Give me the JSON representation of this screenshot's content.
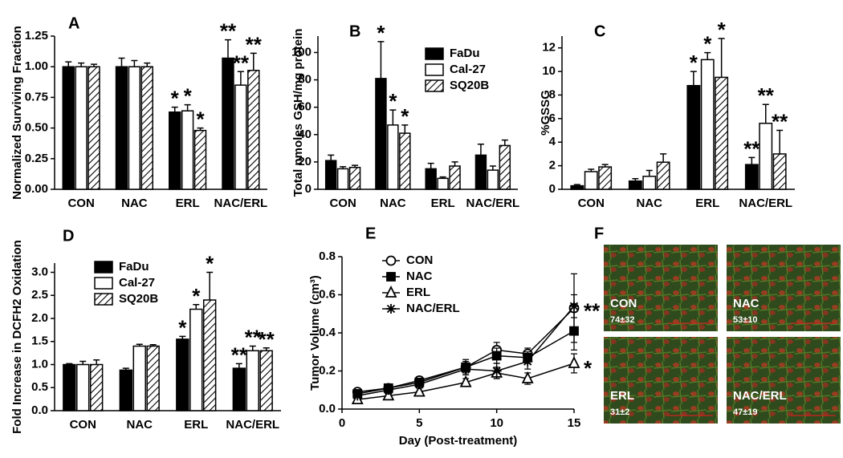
{
  "chart_data": [
    {
      "type": "bar",
      "panel": "A",
      "y_label": "Normalized Surviving Fraction",
      "legend": false,
      "categories": [
        "CON",
        "NAC",
        "ERL",
        "NAC/ERL"
      ],
      "ylim": [
        0,
        1.25
      ],
      "yticks": [
        {
          "value": 0,
          "label": "0.00"
        },
        0.25,
        {
          "value": 0.5,
          "label": "0.50"
        },
        0.75,
        {
          "value": 1,
          "label": "1.00"
        },
        1.25
      ],
      "series": [
        {
          "name": "FaDu",
          "color": "#000000",
          "values": [
            1.0,
            1.0,
            0.63,
            1.07
          ],
          "errors": [
            0.04,
            0.07,
            0.04,
            0.15
          ],
          "significance": [
            null,
            null,
            "*",
            "**"
          ]
        },
        {
          "name": "Cal-27",
          "color": "#ffffff",
          "values": [
            1.0,
            1.0,
            0.64,
            0.85
          ],
          "errors": [
            0.03,
            0.05,
            0.05,
            0.11
          ],
          "significance": [
            null,
            null,
            "*",
            "**"
          ]
        },
        {
          "name": "SQ20B",
          "color": "#000000",
          "hatch": true,
          "values": [
            1.0,
            1.0,
            0.48,
            0.97
          ],
          "errors": [
            0.02,
            0.03,
            0.02,
            0.14
          ],
          "significance": [
            null,
            null,
            "*",
            "**"
          ]
        }
      ]
    },
    {
      "type": "bar",
      "panel": "B",
      "y_label": "Total nmoles GSH/mg protein",
      "legend": "top-right",
      "categories": [
        "CON",
        "NAC",
        "ERL",
        "NAC/ERL"
      ],
      "ylim": [
        0,
        112
      ],
      "yticks": [
        0,
        20,
        40,
        60,
        80,
        100
      ],
      "series": [
        {
          "name": "FaDu",
          "color": "#000000",
          "values": [
            21,
            81,
            15,
            25
          ],
          "errors": [
            4,
            27,
            4,
            8
          ],
          "significance": [
            null,
            "*",
            null,
            null
          ]
        },
        {
          "name": "Cal-27",
          "color": "#ffffff",
          "values": [
            15,
            47,
            8,
            14
          ],
          "errors": [
            1.5,
            11,
            1,
            3
          ],
          "significance": [
            null,
            "*",
            null,
            null
          ]
        },
        {
          "name": "SQ20B",
          "color": "#000000",
          "hatch": true,
          "values": [
            16,
            41,
            17,
            32
          ],
          "errors": [
            1.5,
            6,
            3,
            4
          ],
          "significance": [
            null,
            "*",
            null,
            null
          ]
        }
      ]
    },
    {
      "type": "bar",
      "panel": "C",
      "y_label": "%GSSG",
      "legend": false,
      "categories": [
        "CON",
        "NAC",
        "ERL",
        "NAC/ERL"
      ],
      "ylim": [
        0,
        13
      ],
      "yticks": [
        0,
        2,
        4,
        6,
        8,
        10,
        12
      ],
      "series": [
        {
          "name": "FaDu",
          "color": "#000000",
          "values": [
            0.3,
            0.7,
            8.8,
            2.1
          ],
          "errors": [
            0.1,
            0.2,
            1.2,
            0.6
          ],
          "significance": [
            null,
            null,
            "*",
            "**"
          ]
        },
        {
          "name": "Cal-27",
          "color": "#ffffff",
          "values": [
            1.5,
            1.1,
            11,
            5.6
          ],
          "errors": [
            0.2,
            0.5,
            0.6,
            1.6
          ],
          "significance": [
            null,
            null,
            "*",
            "**"
          ]
        },
        {
          "name": "SQ20B",
          "color": "#000000",
          "hatch": true,
          "values": [
            1.9,
            2.3,
            9.5,
            3.0
          ],
          "errors": [
            0.2,
            0.7,
            3.3,
            2.0
          ],
          "significance": [
            null,
            null,
            "*",
            "**"
          ]
        }
      ]
    },
    {
      "type": "bar",
      "panel": "D",
      "y_label": "Fold Increase in DCFH2 Oxidation",
      "legend": "top-left",
      "categories": [
        "CON",
        "NAC",
        "ERL",
        "NAC/ERL"
      ],
      "ylim": [
        0,
        3.2
      ],
      "yticks": [
        {
          "value": 0,
          "label": "0.0"
        },
        0.5,
        {
          "value": 1,
          "label": "1.0"
        },
        1.5,
        {
          "value": 2,
          "label": "2.0"
        },
        2.5,
        {
          "value": 3,
          "label": "3.0"
        }
      ],
      "series": [
        {
          "name": "FaDu",
          "color": "#000000",
          "values": [
            1.0,
            0.88,
            1.55,
            0.92
          ],
          "errors": [
            0.02,
            0.04,
            0.06,
            0.1
          ],
          "significance": [
            null,
            null,
            "*",
            "**"
          ]
        },
        {
          "name": "Cal-27",
          "color": "#ffffff",
          "values": [
            1.0,
            1.4,
            2.2,
            1.3
          ],
          "errors": [
            0.07,
            0.04,
            0.1,
            0.1
          ],
          "significance": [
            null,
            null,
            "*",
            "**"
          ]
        },
        {
          "name": "SQ20B",
          "color": "#000000",
          "hatch": true,
          "values": [
            1.0,
            1.4,
            2.4,
            1.3
          ],
          "errors": [
            0.1,
            0.03,
            0.6,
            0.06
          ],
          "significance": [
            null,
            null,
            "*",
            "**"
          ]
        }
      ]
    },
    {
      "type": "line",
      "panel": "E",
      "y_label": "Tumor Volume (cm³)",
      "x_label": "Day (Post-treatment)",
      "legend": "top-left",
      "x": [
        1,
        3,
        5,
        8,
        10,
        12,
        15
      ],
      "xlim": [
        0,
        15
      ],
      "xticks": [
        0,
        5,
        10,
        15
      ],
      "ylim": [
        0,
        0.8
      ],
      "yticks": [
        {
          "value": 0,
          "label": "0.0"
        },
        0.2,
        0.4,
        0.6,
        0.8
      ],
      "series": [
        {
          "name": "CON",
          "color": "#000000",
          "marker": "circle-open",
          "values": [
            0.09,
            0.11,
            0.15,
            0.22,
            0.31,
            0.29,
            0.53
          ],
          "errors": [
            0.01,
            0.02,
            0.02,
            0.03,
            0.04,
            0.03,
            0.18
          ],
          "significance": null
        },
        {
          "name": "NAC",
          "color": "#000000",
          "marker": "square",
          "values": [
            0.08,
            0.11,
            0.14,
            0.22,
            0.28,
            0.27,
            0.41
          ],
          "errors": [
            0.01,
            0.02,
            0.02,
            0.04,
            0.04,
            0.03,
            0.1
          ],
          "significance": null
        },
        {
          "name": "ERL",
          "color": "#000000",
          "marker": "triangle-open",
          "values": [
            0.05,
            0.07,
            0.09,
            0.14,
            0.19,
            0.16,
            0.24
          ],
          "errors": [
            0.01,
            0.01,
            0.02,
            0.02,
            0.03,
            0.03,
            0.05
          ],
          "significance": "*"
        },
        {
          "name": "NAC/ERL",
          "color": "#000000",
          "marker": "star",
          "values": [
            0.07,
            0.1,
            0.13,
            0.21,
            0.2,
            0.25,
            0.54
          ],
          "errors": [
            0.01,
            0.02,
            0.02,
            0.03,
            0.04,
            0.04,
            0.06
          ],
          "significance": "**"
        }
      ]
    },
    {
      "type": "image",
      "panel": "F",
      "images": [
        {
          "label": "CON",
          "text": "74±32"
        },
        {
          "label": "NAC",
          "text": "53±10"
        },
        {
          "label": "ERL",
          "text": "31±2"
        },
        {
          "label": "NAC/ERL",
          "text": "47±19"
        }
      ]
    }
  ]
}
